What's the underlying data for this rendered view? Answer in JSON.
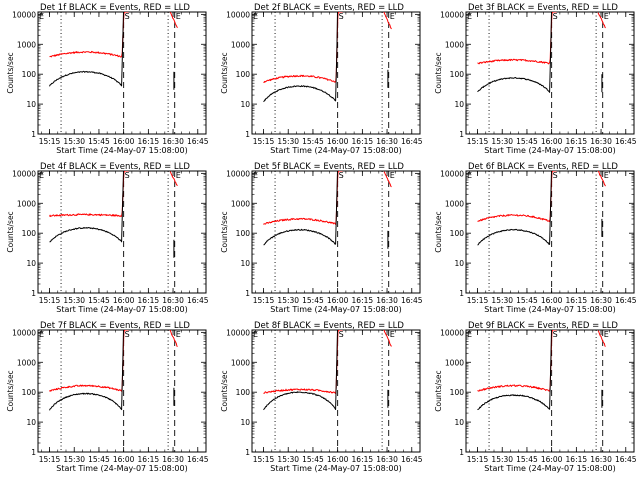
{
  "chart_data": {
    "type": "line",
    "layout": "3x3 grid of panels",
    "common": {
      "xlabel": "Start Time (24-May-07 15:08:00)",
      "ylabel": "Counts/sec",
      "x_ticks": [
        "15:15",
        "15:30",
        "15:45",
        "16:00",
        "16:15",
        "16:30",
        "16:45"
      ],
      "x_range": [
        "15:08",
        "16:50"
      ],
      "y_scale": "log",
      "y_range": [
        1,
        12000
      ],
      "y_ticks": [
        "1",
        "10",
        "100",
        "1000",
        "10000"
      ],
      "series": [
        {
          "name": "Events",
          "color": "#000000"
        },
        {
          "name": "LLD",
          "color": "#ff0000"
        }
      ],
      "markers": [
        {
          "time": "15:08",
          "label": "E",
          "style": "dotted"
        },
        {
          "time": "15:22",
          "style": "dotted"
        },
        {
          "time": "16:00",
          "label": "S",
          "style": "dashed"
        },
        {
          "time": "16:27",
          "style": "dotted"
        },
        {
          "time": "16:31",
          "label": "E",
          "style": "dashed"
        },
        {
          "time": "16:50",
          "style": "dotted"
        }
      ],
      "night_gaps": [
        [
          "16:03",
          "16:28"
        ],
        [
          "16:33",
          "16:50"
        ]
      ]
    },
    "panels": [
      {
        "title": "Det 1f BLACK = Events, RED = LLD",
        "lld_base": 380,
        "lld_hump": 1.45,
        "ev_base": 40,
        "ev_peak": 120,
        "lld_after": 500,
        "ev_after": 60,
        "flare_peak": 12000
      },
      {
        "title": "Det 2f BLACK = Events, RED = LLD",
        "lld_base": 55,
        "lld_hump": 1.6,
        "ev_base": 12,
        "ev_peak": 40,
        "lld_after": 120,
        "ev_after": 70,
        "flare_peak": 12000
      },
      {
        "title": "Det 3f BLACK = Events, RED = LLD",
        "lld_base": 230,
        "lld_hump": 1.3,
        "ev_base": 25,
        "ev_peak": 75,
        "lld_after": 450,
        "ev_after": 50,
        "flare_peak": 12000
      },
      {
        "title": "Det 4f BLACK = Events, RED = LLD",
        "lld_base": 380,
        "lld_hump": 1.1,
        "ev_base": 50,
        "ev_peak": 150,
        "lld_after": 600,
        "ev_after": 30,
        "flare_peak": 12000
      },
      {
        "title": "Det 5f BLACK = Events, RED = LLD",
        "lld_base": 200,
        "lld_hump": 1.5,
        "ev_base": 40,
        "ev_peak": 130,
        "lld_after": 350,
        "ev_after": 60,
        "flare_peak": 12000
      },
      {
        "title": "Det 6f BLACK = Events, RED = LLD",
        "lld_base": 250,
        "lld_hump": 1.6,
        "ev_base": 40,
        "ev_peak": 130,
        "lld_after": 700,
        "ev_after": 150,
        "flare_peak": 12000
      },
      {
        "title": "Det 7f BLACK = Events, RED = LLD",
        "lld_base": 110,
        "lld_hump": 1.5,
        "ev_base": 25,
        "ev_peak": 90,
        "lld_after": 200,
        "ev_after": 70,
        "flare_peak": 12000
      },
      {
        "title": "Det 8f BLACK = Events, RED = LLD",
        "lld_base": 95,
        "lld_hump": 1.3,
        "ev_base": 25,
        "ev_peak": 100,
        "lld_after": 250,
        "ev_after": 60,
        "flare_peak": 12000
      },
      {
        "title": "Det 9f BLACK = Events, RED = LLD",
        "lld_base": 110,
        "lld_hump": 1.5,
        "ev_base": 25,
        "ev_peak": 80,
        "lld_after": 200,
        "ev_after": 60,
        "flare_peak": 12000
      }
    ]
  }
}
